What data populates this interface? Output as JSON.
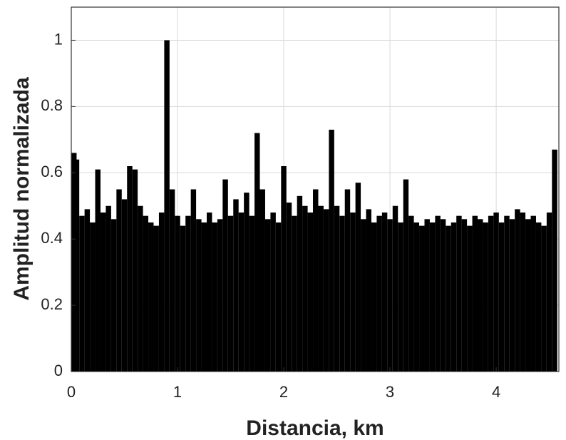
{
  "chart_data": {
    "type": "bar",
    "xlabel": "Distancia, km",
    "ylabel": "Amplitud normalizada",
    "x": [
      0,
      0.05,
      0.1,
      0.15,
      0.2,
      0.25,
      0.3,
      0.35,
      0.4,
      0.45,
      0.5,
      0.55,
      0.6,
      0.65,
      0.7,
      0.75,
      0.8,
      0.85,
      0.9,
      0.95,
      1,
      1.05,
      1.1,
      1.15,
      1.2,
      1.25,
      1.3,
      1.35,
      1.4,
      1.45,
      1.5,
      1.55,
      1.6,
      1.65,
      1.7,
      1.75,
      1.8,
      1.85,
      1.9,
      1.95,
      2,
      2.05,
      2.1,
      2.15,
      2.2,
      2.25,
      2.3,
      2.35,
      2.4,
      2.45,
      2.5,
      2.55,
      2.6,
      2.65,
      2.7,
      2.75,
      2.8,
      2.85,
      2.9,
      2.95,
      3,
      3.05,
      3.1,
      3.15,
      3.2,
      3.25,
      3.3,
      3.35,
      3.4,
      3.45,
      3.5,
      3.55,
      3.6,
      3.65,
      3.7,
      3.75,
      3.8,
      3.85,
      3.9,
      3.95,
      4,
      4.05,
      4.1,
      4.15,
      4.2,
      4.25,
      4.3,
      4.35,
      4.4,
      4.45,
      4.5,
      4.55
    ],
    "values": [
      0.66,
      0.64,
      0.47,
      0.49,
      0.45,
      0.61,
      0.48,
      0.5,
      0.46,
      0.55,
      0.52,
      0.62,
      0.61,
      0.5,
      0.47,
      0.45,
      0.44,
      0.48,
      1.0,
      0.55,
      0.47,
      0.44,
      0.47,
      0.55,
      0.46,
      0.45,
      0.48,
      0.45,
      0.46,
      0.58,
      0.47,
      0.52,
      0.48,
      0.54,
      0.47,
      0.72,
      0.55,
      0.46,
      0.48,
      0.45,
      0.62,
      0.51,
      0.47,
      0.53,
      0.5,
      0.48,
      0.55,
      0.5,
      0.49,
      0.73,
      0.5,
      0.47,
      0.55,
      0.48,
      0.57,
      0.46,
      0.49,
      0.45,
      0.47,
      0.48,
      0.46,
      0.5,
      0.45,
      0.58,
      0.47,
      0.45,
      0.44,
      0.46,
      0.45,
      0.47,
      0.46,
      0.44,
      0.45,
      0.47,
      0.46,
      0.44,
      0.47,
      0.46,
      0.45,
      0.47,
      0.48,
      0.45,
      0.47,
      0.46,
      0.49,
      0.48,
      0.46,
      0.47,
      0.45,
      0.44,
      0.48,
      0.67
    ],
    "bar_width": 0.05,
    "color": "#000000",
    "xlim": [
      0,
      4.59
    ],
    "xticks": [
      0,
      1,
      2,
      3,
      4
    ],
    "ylim": [
      0,
      1.1
    ],
    "yticks": [
      0,
      0.2,
      0.4,
      0.6,
      0.8,
      1
    ],
    "grid": true
  }
}
